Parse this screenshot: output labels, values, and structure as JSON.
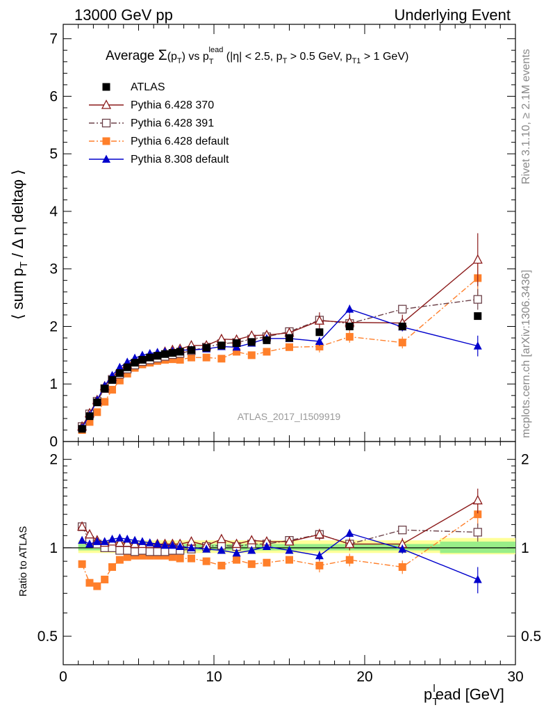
{
  "header": {
    "left": "13000 GeV pp",
    "right": "Underlying Event"
  },
  "side_labels": {
    "rivet": "Rivet 3.1.10, ≥ 2.1M events",
    "mcplots": "mcplots.cern.ch [arXiv:1306.3436]"
  },
  "chart_data": [
    {
      "type": "line",
      "title_parts": {
        "a": "Average ",
        "sigma": "Σ",
        "b": "(p",
        "b_sub": "T",
        "c": ")  vs p",
        "c_sub": "T",
        "c_sup": "lead",
        "d": " (|η| < 2.5, p",
        "d_sub": "T",
        "e": " > 0.5 GeV, p",
        "e_sub": "T1",
        "f": " > 1 GeV)"
      },
      "ylabel_parts": {
        "a": "⟨ sum p",
        "sub": "T",
        "b": " / Δ η deltaφ ⟩"
      },
      "watermark": "ATLAS_2017_I1509919",
      "xlim": [
        0,
        30
      ],
      "ylim": [
        0,
        7.25
      ],
      "yticks": [
        "0",
        "1",
        "2",
        "3",
        "4",
        "5",
        "6",
        "7"
      ],
      "legend_position": "top-left",
      "x": [
        1.25,
        1.75,
        2.25,
        2.75,
        3.25,
        3.75,
        4.25,
        4.75,
        5.25,
        5.75,
        6.25,
        6.75,
        7.25,
        7.75,
        8.5,
        9.5,
        10.5,
        11.5,
        12.5,
        13.5,
        15.0,
        17.0,
        19.0,
        22.5,
        27.5
      ],
      "series": [
        {
          "name": "ATLAS",
          "color": "#000000",
          "marker": "square-filled",
          "values": [
            0.22,
            0.44,
            0.68,
            0.92,
            1.07,
            1.19,
            1.29,
            1.37,
            1.42,
            1.46,
            1.49,
            1.52,
            1.54,
            1.56,
            1.59,
            1.63,
            1.67,
            1.71,
            1.73,
            1.76,
            1.8,
            1.9,
            2.0,
            2.0,
            2.18
          ],
          "ratio": [
            1.0,
            1.0,
            1.0,
            1.0,
            1.0,
            1.0,
            1.0,
            1.0,
            1.0,
            1.0,
            1.0,
            1.0,
            1.0,
            1.0,
            1.0,
            1.0,
            1.0,
            1.0,
            1.0,
            1.0,
            1.0,
            1.0,
            1.0,
            1.0,
            1.0
          ]
        },
        {
          "name": "Pythia 6.428 370",
          "color": "#8b1a1a",
          "marker": "triangle-open",
          "dash": "",
          "values": [
            0.26,
            0.49,
            0.72,
            0.96,
            1.12,
            1.24,
            1.34,
            1.41,
            1.46,
            1.5,
            1.53,
            1.56,
            1.59,
            1.61,
            1.67,
            1.67,
            1.78,
            1.77,
            1.84,
            1.85,
            1.89,
            2.1,
            2.07,
            2.06,
            3.16
          ],
          "ratio": [
            1.18,
            1.11,
            1.06,
            1.04,
            1.05,
            1.04,
            1.04,
            1.03,
            1.03,
            1.03,
            1.03,
            1.03,
            1.03,
            1.03,
            1.05,
            1.02,
            1.07,
            1.03,
            1.06,
            1.05,
            1.05,
            1.11,
            1.03,
            1.03,
            1.45
          ],
          "err_last": 0.42,
          "ratio_err_last": 0.12
        },
        {
          "name": "Pythia 6.428 391",
          "color": "#6b4048",
          "marker": "square-open",
          "dash": "8 3 2 3",
          "values": [
            0.26,
            0.48,
            0.7,
            0.92,
            1.08,
            1.17,
            1.26,
            1.33,
            1.39,
            1.42,
            1.45,
            1.48,
            1.51,
            1.53,
            1.58,
            1.64,
            1.7,
            1.72,
            1.78,
            1.82,
            1.91,
            2.11,
            2.05,
            2.3,
            2.47
          ],
          "ratio": [
            1.18,
            1.06,
            1.03,
            1.0,
            1.0,
            0.98,
            0.98,
            0.97,
            0.98,
            0.97,
            0.97,
            0.97,
            0.98,
            0.98,
            0.99,
            1.01,
            1.02,
            1.01,
            1.03,
            1.03,
            1.06,
            1.11,
            1.03,
            1.15,
            1.13
          ],
          "err_last": 0.14,
          "ratio_err_last": 0.06
        },
        {
          "name": "Pythia 6.428 default",
          "color": "#ff7f2a",
          "marker": "square-filled",
          "dash": "8 3 2 3",
          "values": [
            0.2,
            0.34,
            0.51,
            0.69,
            0.9,
            1.06,
            1.18,
            1.28,
            1.34,
            1.37,
            1.4,
            1.42,
            1.43,
            1.42,
            1.46,
            1.46,
            1.44,
            1.56,
            1.5,
            1.56,
            1.64,
            1.65,
            1.82,
            1.72,
            2.84
          ],
          "ratio": [
            0.88,
            0.76,
            0.74,
            0.78,
            0.86,
            0.91,
            0.93,
            0.94,
            0.94,
            0.94,
            0.94,
            0.94,
            0.93,
            0.92,
            0.92,
            0.9,
            0.87,
            0.91,
            0.88,
            0.89,
            0.91,
            0.87,
            0.91,
            0.86,
            1.3
          ],
          "err_last": 0.25,
          "ratio_err_last": 0.1
        },
        {
          "name": "Pythia 8.308 default",
          "color": "#0000cc",
          "marker": "triangle-filled",
          "dash": "",
          "values": [
            0.24,
            0.46,
            0.72,
            0.97,
            1.15,
            1.29,
            1.38,
            1.45,
            1.5,
            1.53,
            1.55,
            1.56,
            1.57,
            1.59,
            1.59,
            1.61,
            1.65,
            1.64,
            1.71,
            1.79,
            1.79,
            1.74,
            2.3,
            1.99,
            1.66
          ],
          "ratio": [
            1.06,
            1.03,
            1.05,
            1.05,
            1.07,
            1.08,
            1.07,
            1.06,
            1.05,
            1.04,
            1.03,
            1.02,
            1.02,
            1.01,
            1.0,
            0.99,
            0.98,
            0.96,
            0.98,
            1.01,
            0.98,
            0.94,
            1.12,
            0.99,
            0.78
          ],
          "err_last": 0.14,
          "ratio_err_last": 0.06
        }
      ]
    },
    {
      "type": "line",
      "ylabel": "Ratio to ATLAS",
      "xlabel_parts": {
        "a": "p",
        "sub": "T",
        "sup": "l",
        "b": "ead [GeV]"
      },
      "xlim": [
        0,
        30
      ],
      "ylim": [
        0.4,
        2.3
      ],
      "yticks": [
        "0.5",
        "1",
        "2"
      ],
      "xticks": [
        "0",
        "10",
        "20",
        "30"
      ]
    }
  ]
}
